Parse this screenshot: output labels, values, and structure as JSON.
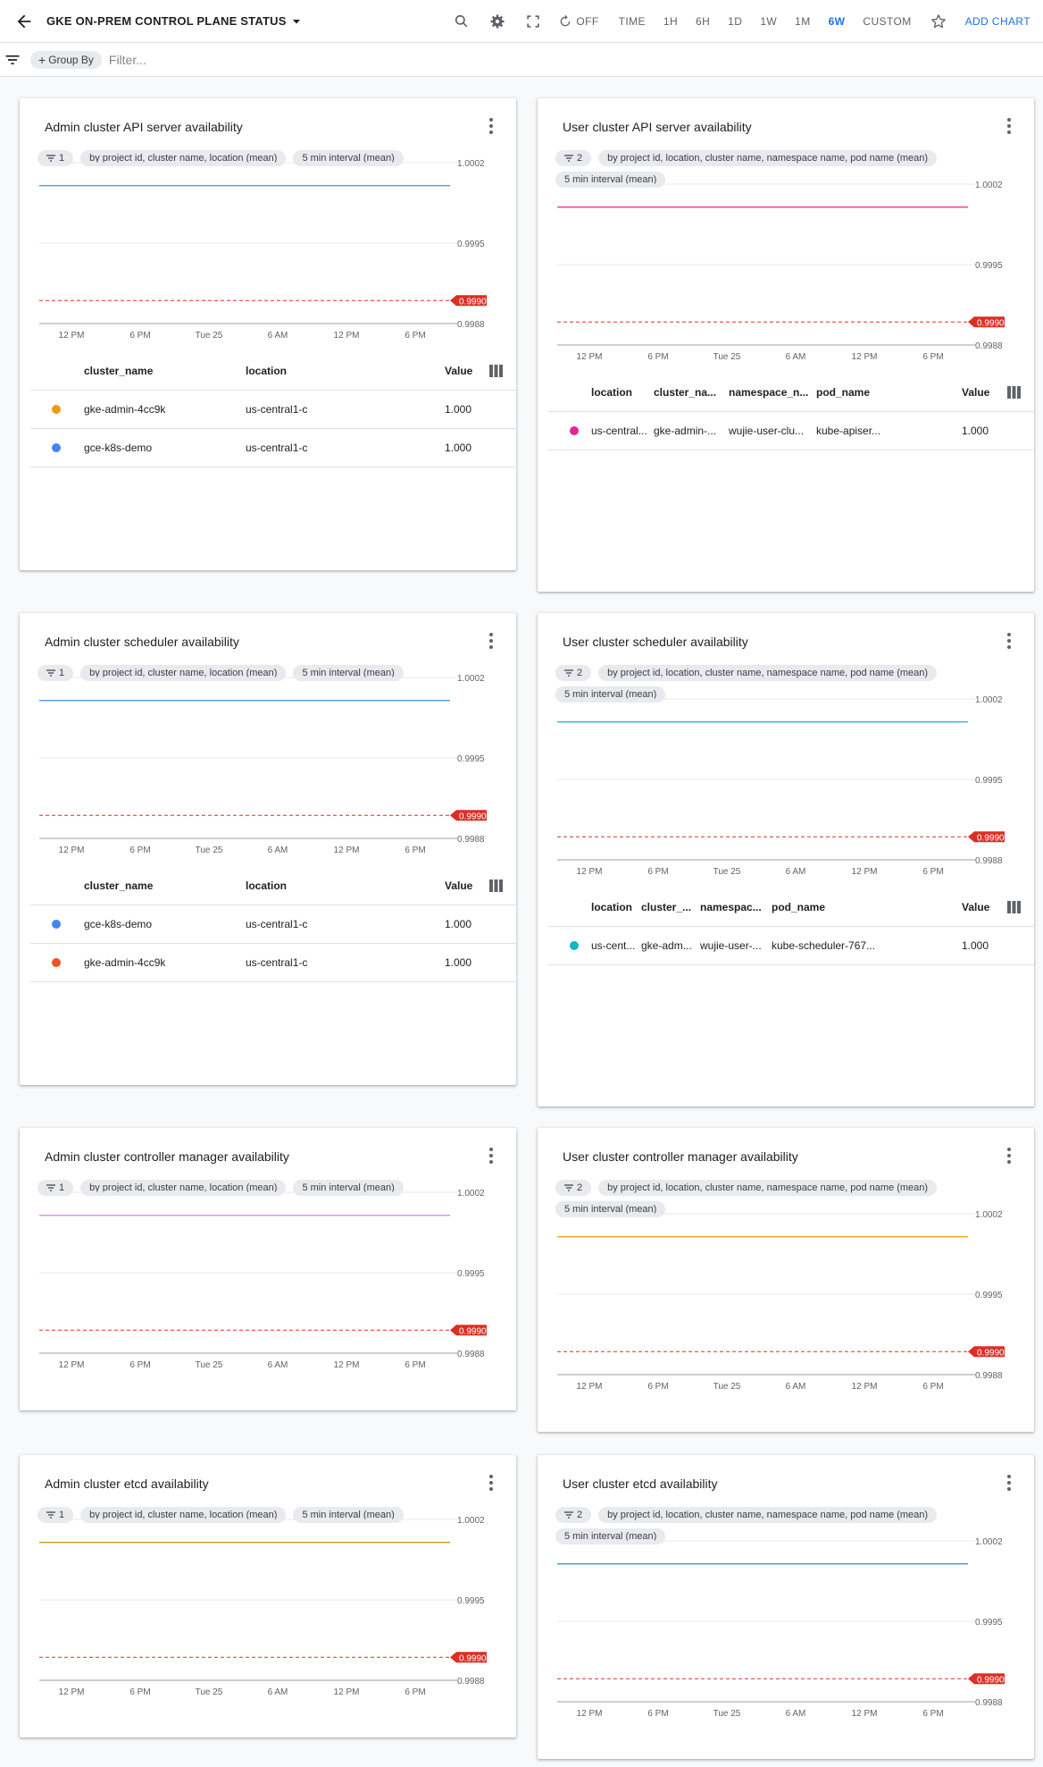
{
  "header": {
    "title": "GKE ON-PREM CONTROL PLANE STATUS",
    "refresh_label": "OFF",
    "time_label": "TIME",
    "ranges": [
      "1H",
      "6H",
      "1D",
      "1W",
      "1M",
      "6W",
      "CUSTOM"
    ],
    "active_range": "6W",
    "add_chart_label": "ADD CHART",
    "accent_color": "#1a73e8"
  },
  "filterbar": {
    "group_by_label": "Group By",
    "filter_placeholder": "Filter..."
  },
  "cards": [
    {
      "title": "Admin cluster API server availability",
      "chips": [
        "1",
        "by project id, cluster name, location (mean)",
        "5 min interval (mean)"
      ],
      "columns": [
        "cluster_name",
        "location",
        "Value"
      ],
      "rows": [
        {
          "color": "#f29900",
          "cells": [
            "gke-admin-4cc9k",
            "us-central1-c",
            "1.000"
          ]
        },
        {
          "color": "#4285f4",
          "cells": [
            "gce-k8s-demo",
            "us-central1-c",
            "1.000"
          ]
        }
      ],
      "chart_data": {
        "type": "line",
        "x_ticks": [
          "12 PM",
          "6 PM",
          "Tue 25",
          "6 AM",
          "12 PM",
          "6 PM"
        ],
        "y_ticks": [
          "1.0002",
          "0.9995",
          "0.9988"
        ],
        "ylim": [
          0.9988,
          1.0002
        ],
        "threshold": {
          "value": 0.999,
          "label": "0.9990",
          "color": "#d93025"
        },
        "series": [
          {
            "color": "#4285f4",
            "values": [
              1.0,
              1.0
            ]
          }
        ]
      }
    },
    {
      "title": "User cluster API server availability",
      "chips": [
        "2",
        "by project id, location, cluster name, namespace name, pod name (mean)",
        "5 min interval (mean)"
      ],
      "columns": [
        "location",
        "cluster_na...",
        "namespace_n...",
        "pod_name",
        "Value"
      ],
      "rows": [
        {
          "color": "#e52592",
          "cells": [
            "us-central...",
            "gke-admin-...",
            "wujie-user-clu...",
            "kube-apiser...",
            "1.000"
          ]
        }
      ],
      "chart_data": {
        "type": "line",
        "x_ticks": [
          "12 PM",
          "6 PM",
          "Tue 25",
          "6 AM",
          "12 PM",
          "6 PM"
        ],
        "y_ticks": [
          "1.0002",
          "0.9995",
          "0.9988"
        ],
        "ylim": [
          0.9988,
          1.0002
        ],
        "threshold": {
          "value": 0.999,
          "label": "0.9990",
          "color": "#d93025"
        },
        "series": [
          {
            "color": "#e52592",
            "values": [
              1.0,
              1.0
            ]
          }
        ]
      }
    },
    {
      "title": "Admin cluster scheduler availability",
      "chips": [
        "1",
        "by project id, cluster name, location (mean)",
        "5 min interval (mean)"
      ],
      "columns": [
        "cluster_name",
        "location",
        "Value"
      ],
      "rows": [
        {
          "color": "#4285f4",
          "cells": [
            "gce-k8s-demo",
            "us-central1-c",
            "1.000"
          ]
        },
        {
          "color": "#f4511e",
          "cells": [
            "gke-admin-4cc9k",
            "us-central1-c",
            "1.000"
          ]
        }
      ],
      "chart_data": {
        "type": "line",
        "x_ticks": [
          "12 PM",
          "6 PM",
          "Tue 25",
          "6 AM",
          "12 PM",
          "6 PM"
        ],
        "y_ticks": [
          "1.0002",
          "0.9995",
          "0.9988"
        ],
        "ylim": [
          0.9988,
          1.0002
        ],
        "threshold": {
          "value": 0.999,
          "label": "0.9990",
          "color": "#d93025"
        },
        "series": [
          {
            "color": "#4285f4",
            "values": [
              1.0,
              1.0
            ]
          }
        ]
      }
    },
    {
      "title": "User cluster scheduler availability",
      "chips": [
        "2",
        "by project id, location, cluster name, namespace name, pod name (mean)",
        "5 min interval (mean)"
      ],
      "columns": [
        "location",
        "cluster_...",
        "namespac...",
        "pod_name",
        "Value"
      ],
      "rows": [
        {
          "color": "#12b5cb",
          "cells": [
            "us-cent...",
            "gke-adm...",
            "wujie-user-...",
            "kube-scheduler-767...",
            "1.000"
          ]
        }
      ],
      "chart_data": {
        "type": "line",
        "x_ticks": [
          "12 PM",
          "6 PM",
          "Tue 25",
          "6 AM",
          "12 PM",
          "6 PM"
        ],
        "y_ticks": [
          "1.0002",
          "0.9995",
          "0.9988"
        ],
        "ylim": [
          0.9988,
          1.0002
        ],
        "threshold": {
          "value": 0.999,
          "label": "0.9990",
          "color": "#d93025"
        },
        "series": [
          {
            "color": "#12b5cb",
            "values": [
              1.0,
              1.0
            ]
          }
        ]
      }
    },
    {
      "title": "Admin cluster controller manager availability",
      "chips": [
        "1",
        "by project id, cluster name, location (mean)",
        "5 min interval (mean)"
      ],
      "columns": [],
      "rows": [],
      "chart_data": {
        "type": "line",
        "x_ticks": [
          "12 PM",
          "6 PM",
          "Tue 25",
          "6 AM",
          "12 PM",
          "6 PM"
        ],
        "y_ticks": [
          "1.0002",
          "0.9995",
          "0.9988"
        ],
        "ylim": [
          0.9988,
          1.0002
        ],
        "threshold": {
          "value": 0.999,
          "label": "0.9990",
          "color": "#d93025"
        },
        "series": [
          {
            "color": "#e07bf0",
            "values": [
              1.0,
              1.0
            ]
          }
        ]
      }
    },
    {
      "title": "User cluster controller manager availability",
      "chips": [
        "2",
        "by project id, location, cluster name, namespace name, pod name (mean)",
        "5 min interval (mean)"
      ],
      "columns": [],
      "rows": [],
      "chart_data": {
        "type": "line",
        "x_ticks": [
          "12 PM",
          "6 PM",
          "Tue 25",
          "6 AM",
          "12 PM",
          "6 PM"
        ],
        "y_ticks": [
          "1.0002",
          "0.9995",
          "0.9988"
        ],
        "ylim": [
          0.9988,
          1.0002
        ],
        "threshold": {
          "value": 0.999,
          "label": "0.9990",
          "color": "#d93025"
        },
        "series": [
          {
            "color": "#f29900",
            "values": [
              1.0,
              1.0
            ]
          }
        ]
      }
    },
    {
      "title": "Admin cluster etcd availability",
      "chips": [
        "1",
        "by project id, cluster name, location (mean)",
        "5 min interval (mean)"
      ],
      "columns": [],
      "rows": [],
      "chart_data": {
        "type": "line",
        "x_ticks": [
          "12 PM",
          "6 PM",
          "Tue 25",
          "6 AM",
          "12 PM",
          "6 PM"
        ],
        "y_ticks": [
          "1.0002",
          "0.9995",
          "0.9988"
        ],
        "ylim": [
          0.9988,
          1.0002
        ],
        "threshold": {
          "value": 0.999,
          "label": "0.9990",
          "color": "#d93025"
        },
        "series": [
          {
            "color": "#b5960a",
            "values": [
              1.0,
              1.0
            ]
          }
        ]
      }
    },
    {
      "title": "User cluster etcd availability",
      "chips": [
        "2",
        "by project id, location, cluster name, namespace name, pod name (mean)",
        "5 min interval (mean)"
      ],
      "columns": [],
      "rows": [],
      "chart_data": {
        "type": "line",
        "x_ticks": [
          "12 PM",
          "6 PM",
          "Tue 25",
          "6 AM",
          "12 PM",
          "6 PM"
        ],
        "y_ticks": [
          "1.0002",
          "0.9995",
          "0.9988"
        ],
        "ylim": [
          0.9988,
          1.0002
        ],
        "threshold": {
          "value": 0.999,
          "label": "0.9990",
          "color": "#d93025"
        },
        "series": [
          {
            "color": "#129eaf",
            "values": [
              1.0,
              1.0
            ]
          }
        ]
      }
    }
  ]
}
